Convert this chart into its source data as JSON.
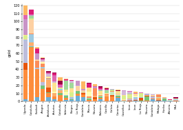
{
  "ylabel": "gold",
  "ylim": [
    0,
    122
  ],
  "yticks": [
    0,
    10,
    20,
    30,
    40,
    50,
    60,
    70,
    80,
    90,
    100,
    110,
    120
  ],
  "cat_labels": [
    "Uganda",
    "Cataluña",
    "Euskadi",
    "Aragon",
    "Andalucia",
    "Asturias",
    "Cataluña",
    "Valencia",
    "Burgos",
    "La Rioja",
    "Cantabria",
    "Murcia",
    "Navarra",
    "Baleares",
    "Castilla",
    "Galicia",
    "Canarias",
    "Castellon",
    "Leon",
    "Leon",
    "La Rioja",
    "Navarra",
    "Cantabria",
    "Malaga",
    "Huelva",
    "Almeria",
    "Mali"
  ],
  "bar_totals": [
    120,
    115,
    68,
    55,
    38,
    36,
    30,
    28,
    27,
    26,
    25,
    23,
    22,
    19,
    17,
    16,
    15,
    14,
    13,
    12,
    11,
    10,
    9,
    9,
    5,
    3,
    5
  ],
  "seg_colors": [
    "#6baed6",
    "#fd8d3c",
    "#74c476",
    "#e6550d",
    "#bcbddc",
    "#fdae6b",
    "#c7e9c0",
    "#9ecae1",
    "#fc8d59",
    "#ffffb3",
    "#fdd0a2",
    "#d9ef8b",
    "#fee391",
    "#a1d99b",
    "#d4b9da",
    "#c994c7",
    "#df65b0",
    "#dd1c77",
    "#980043",
    "#fdb863"
  ],
  "seeds": [
    42,
    7,
    14,
    21,
    28,
    35,
    49,
    56,
    63,
    70,
    77,
    84,
    91,
    98,
    105,
    112,
    119,
    126,
    133,
    140,
    147,
    154,
    161,
    168,
    175,
    182,
    189
  ],
  "alpha_dirichlet": 0.3,
  "background_color": "#ffffff",
  "grid_color": "#d0d0d0",
  "figsize": [
    2.66,
    1.9
  ],
  "dpi": 100
}
